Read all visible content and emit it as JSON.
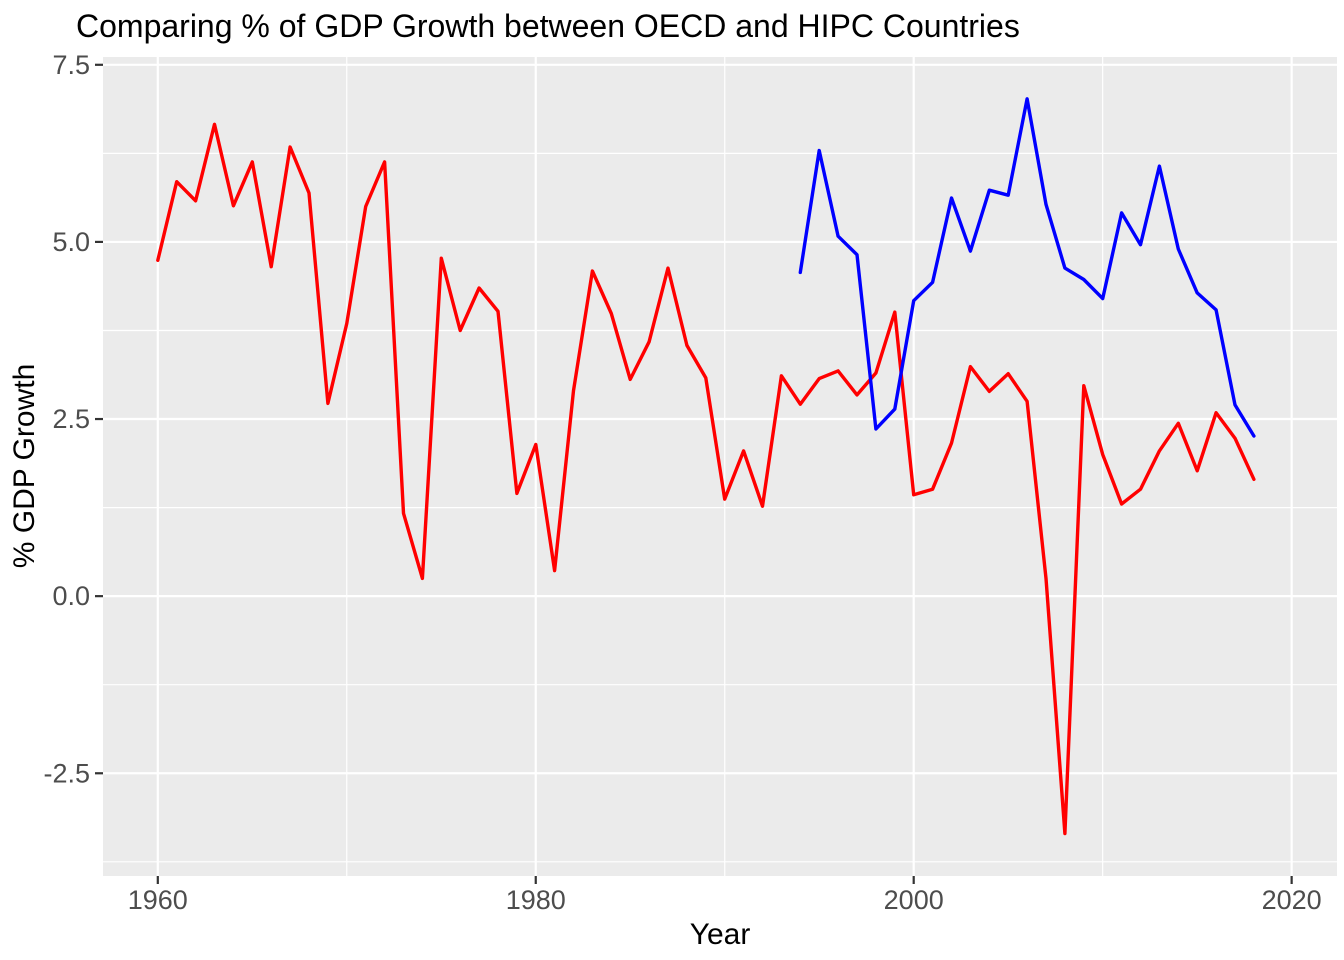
{
  "title": "Comparing % of GDP Growth between OECD and HIPC Countries",
  "chart_data": {
    "type": "line",
    "title": "Comparing % of GDP Growth between OECD and HIPC Countries",
    "xlabel": "Year",
    "ylabel": "% GDP Growth",
    "legend_position": "none",
    "grid": true,
    "panel_background_color": "#EBEBEB",
    "gridline_color": "#FFFFFF",
    "tick_mark_color": "#333333",
    "tick_label_color": "#4D4D4D",
    "xlim": [
      1957.1,
      2022.4
    ],
    "ylim": [
      -3.95,
      7.61
    ],
    "x_ticks": [
      1960,
      1980,
      2000,
      2020
    ],
    "x_tick_labels": [
      "1960",
      "1980",
      "2000",
      "2020"
    ],
    "x_minor_ticks": [
      1970,
      1990,
      2010
    ],
    "y_ticks": [
      7.5,
      5.0,
      2.5,
      0.0,
      -2.5
    ],
    "y_tick_labels": [
      "7.5",
      "5.0",
      "2.5",
      "0.0",
      "-2.5"
    ],
    "y_minor_ticks": [
      6.25,
      3.75,
      1.25,
      -1.25,
      -3.75
    ],
    "series": [
      {
        "name": "OECD",
        "color": "#FF0000",
        "start_year": 1960,
        "values": [
          4.74,
          5.85,
          5.58,
          6.66,
          5.51,
          6.13,
          4.65,
          6.34,
          5.69,
          2.72,
          3.85,
          5.5,
          6.13,
          1.17,
          0.25,
          4.77,
          3.75,
          4.35,
          4.02,
          1.45,
          2.14,
          0.36,
          2.9,
          4.59,
          3.99,
          3.06,
          3.59,
          4.63,
          3.54,
          3.08,
          1.37,
          2.05,
          1.27,
          3.11,
          2.71,
          3.07,
          3.18,
          2.84,
          3.15,
          4.01,
          1.43,
          1.51,
          2.16,
          3.24,
          2.89,
          3.14,
          2.75,
          0.25,
          -3.35,
          2.97,
          2.0,
          1.3,
          1.51,
          2.05,
          2.44,
          1.77,
          2.59,
          2.23,
          1.65
        ]
      },
      {
        "name": "HIPC",
        "color": "#0000FF",
        "start_year": 1994,
        "values": [
          4.57,
          6.29,
          5.08,
          4.82,
          2.36,
          2.64,
          4.17,
          4.43,
          5.62,
          4.87,
          5.73,
          5.66,
          7.02,
          5.53,
          4.63,
          4.47,
          4.2,
          5.41,
          4.96,
          6.07,
          4.9,
          4.28,
          4.04,
          2.7,
          2.26
        ]
      }
    ]
  }
}
